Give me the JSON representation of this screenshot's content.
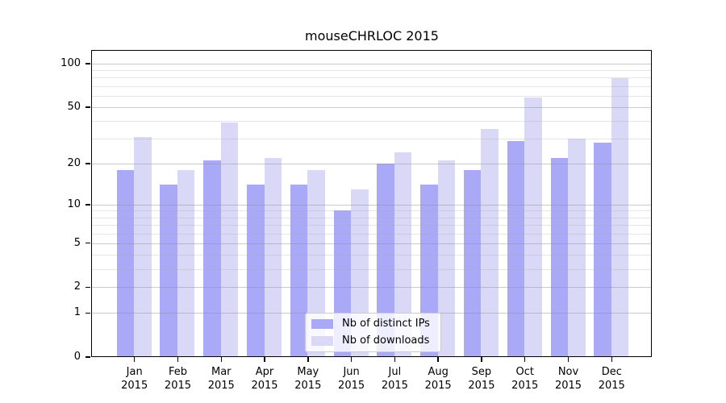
{
  "title": "mouseCHRLOC 2015",
  "chart_data": {
    "type": "bar",
    "title": "mouseCHRLOC 2015",
    "categories": [
      "Jan",
      "Feb",
      "Mar",
      "Apr",
      "May",
      "Jun",
      "Jul",
      "Aug",
      "Sep",
      "Oct",
      "Nov",
      "Dec"
    ],
    "year_label": "2015",
    "series": [
      {
        "name": "Nb of distinct IPs",
        "color": "#a9a9f7",
        "values": [
          18,
          14,
          21,
          14,
          14,
          9,
          20,
          14,
          18,
          29,
          22,
          28
        ]
      },
      {
        "name": "Nb of downloads",
        "color": "#d9d9f7",
        "values": [
          31,
          18,
          39,
          22,
          18,
          13,
          24,
          21,
          35,
          58,
          30,
          79
        ]
      }
    ],
    "y_scale": "log10(1+x)",
    "y_major_ticks": [
      0,
      1,
      2,
      5,
      10,
      20,
      50,
      100
    ],
    "y_minor_ticks": [
      3,
      4,
      6,
      7,
      8,
      9,
      30,
      40,
      60,
      70,
      80,
      90
    ],
    "ylim": [
      0,
      124
    ],
    "xlabel": "",
    "ylabel": "",
    "grid": true,
    "legend_position": "lower-center"
  }
}
